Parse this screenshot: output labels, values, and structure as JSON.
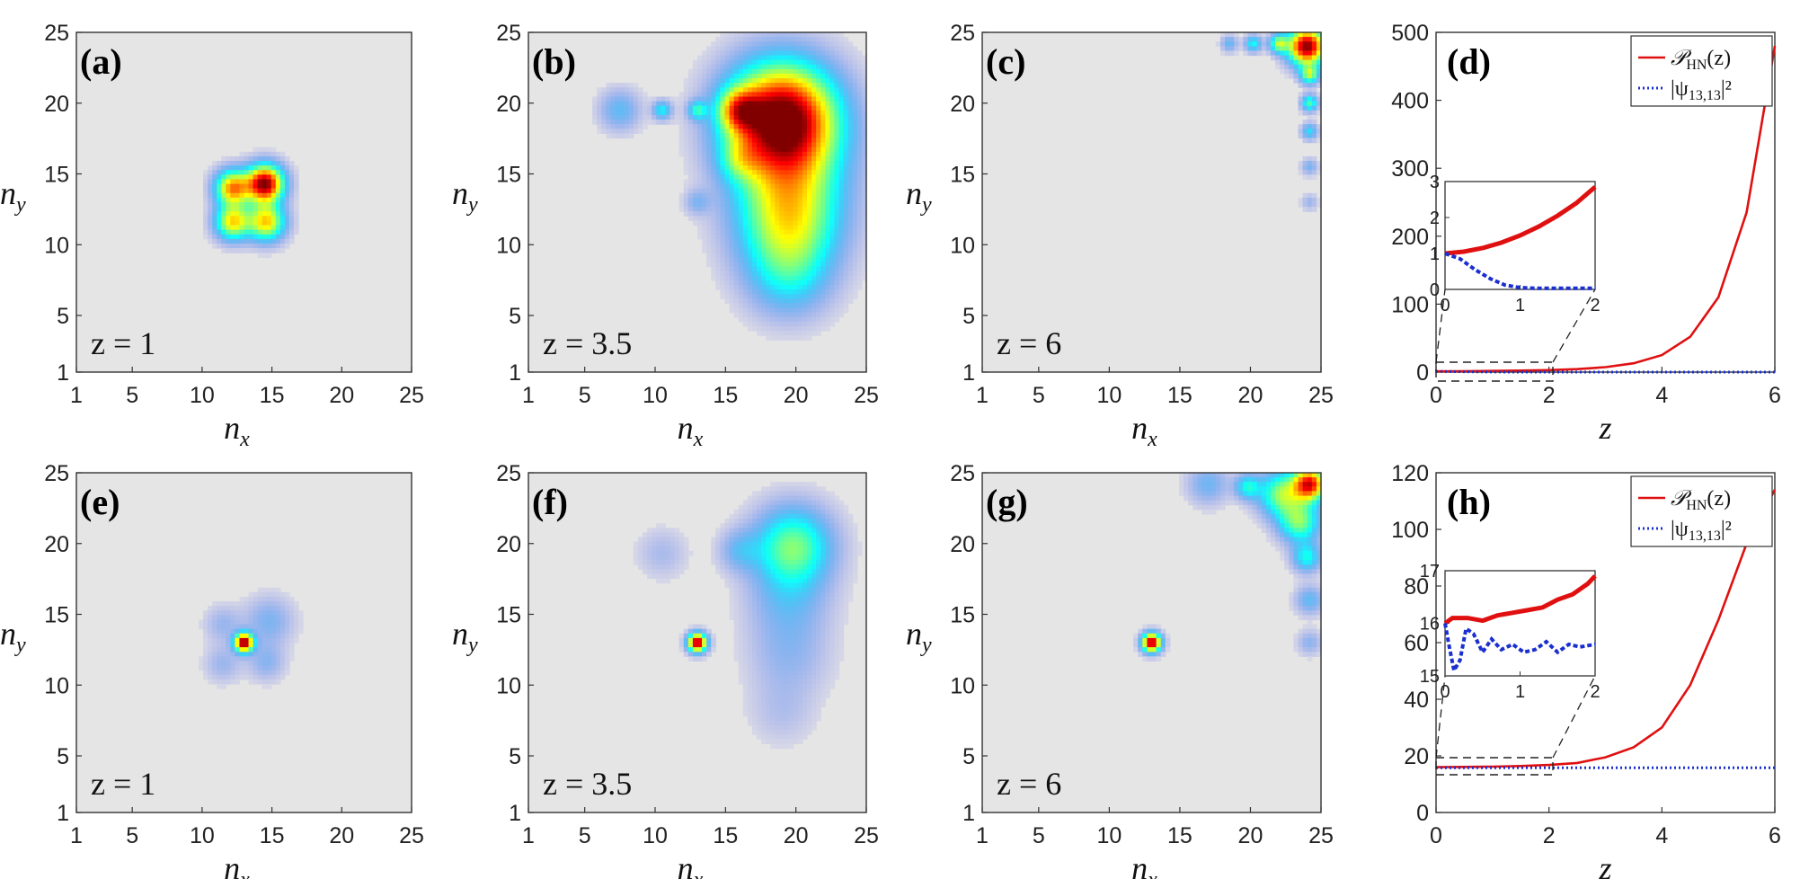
{
  "chart_data": [
    {
      "id": "a",
      "type": "heatmap",
      "panel_label": "(a)",
      "annotation": "z = 1",
      "xlabel": "n",
      "xlabel_sub": "x",
      "ylabel": "n",
      "ylabel_sub": "y",
      "xticks": [
        "1",
        "5",
        "10",
        "15",
        "20",
        "25"
      ],
      "yticks": [
        "1",
        "5",
        "10",
        "15",
        "20",
        "25"
      ],
      "xlim": [
        1,
        25
      ],
      "ylim": [
        1,
        25
      ],
      "blobs": [
        [
          14.5,
          14.3,
          0.9,
          1.0
        ],
        [
          12.2,
          14.0,
          0.85,
          0.7
        ],
        [
          12.2,
          11.6,
          0.85,
          0.6
        ],
        [
          14.6,
          11.6,
          0.9,
          0.62
        ]
      ]
    },
    {
      "id": "b",
      "type": "heatmap",
      "panel_label": "(b)",
      "annotation": "z = 3.5",
      "xlabel": "n",
      "xlabel_sub": "x",
      "ylabel": "n",
      "ylabel_sub": "y",
      "xticks": [
        "1",
        "5",
        "10",
        "15",
        "20",
        "25"
      ],
      "yticks": [
        "1",
        "5",
        "10",
        "15",
        "20",
        "25"
      ],
      "xlim": [
        1,
        25
      ],
      "ylim": [
        1,
        25
      ],
      "blobs": [
        [
          19.0,
          19.0,
          2.6,
          1.0
        ],
        [
          16.0,
          19.5,
          1.0,
          0.45
        ],
        [
          13.0,
          19.5,
          0.45,
          0.3
        ],
        [
          10.5,
          19.5,
          0.45,
          0.28
        ],
        [
          7.5,
          19.5,
          1.0,
          0.18
        ],
        [
          19.5,
          16.0,
          2.8,
          0.22
        ],
        [
          19.5,
          13.0,
          2.5,
          0.3
        ],
        [
          19.5,
          10.5,
          2.4,
          0.3
        ],
        [
          19.5,
          7.5,
          2.0,
          0.18
        ],
        [
          16.0,
          16.0,
          1.0,
          0.18
        ],
        [
          13.0,
          13.0,
          0.6,
          0.12
        ]
      ]
    },
    {
      "id": "c",
      "type": "heatmap",
      "panel_label": "(c)",
      "annotation": "z = 6",
      "xlabel": "n",
      "xlabel_sub": "x",
      "ylabel": "n",
      "ylabel_sub": "y",
      "xticks": [
        "1",
        "5",
        "10",
        "15",
        "20",
        "25"
      ],
      "yticks": [
        "1",
        "5",
        "10",
        "15",
        "20",
        "25"
      ],
      "xlim": [
        1,
        25
      ],
      "ylim": [
        1,
        25
      ],
      "blobs": [
        [
          24.0,
          24.0,
          0.9,
          1.0
        ],
        [
          22.0,
          24.2,
          0.45,
          0.45
        ],
        [
          20.2,
          24.2,
          0.4,
          0.3
        ],
        [
          18.5,
          24.2,
          0.4,
          0.18
        ],
        [
          24.2,
          22.0,
          0.45,
          0.45
        ],
        [
          24.2,
          20.0,
          0.4,
          0.38
        ],
        [
          24.2,
          18.0,
          0.4,
          0.25
        ],
        [
          24.2,
          15.5,
          0.4,
          0.15
        ],
        [
          24.2,
          13.0,
          0.4,
          0.1
        ]
      ]
    },
    {
      "id": "d",
      "type": "line",
      "panel_label": "(d)",
      "xlabel": "z",
      "xticks": [
        "0",
        "2",
        "4",
        "6"
      ],
      "yticks": [
        "0",
        "100",
        "200",
        "300",
        "400",
        "500"
      ],
      "xlim": [
        0,
        6
      ],
      "ylim": [
        0,
        500
      ],
      "series": [
        {
          "name": "𝒫_HN(z)",
          "color": "#e01010",
          "style": "solid",
          "x": [
            0,
            0.5,
            1,
            1.5,
            2,
            2.5,
            3,
            3.5,
            4,
            4.5,
            5,
            5.5,
            6
          ],
          "y": [
            1,
            1.3,
            1.7,
            2.2,
            2.9,
            4.3,
            7.3,
            13,
            25,
            52,
            110,
            235,
            480
          ]
        },
        {
          "name": "|ψ_13,13|²",
          "color": "#1a2fd0",
          "style": "dotted",
          "x": [
            0,
            0.5,
            1,
            1.5,
            2,
            3,
            4,
            5,
            6
          ],
          "y": [
            1,
            0.5,
            0.15,
            0.05,
            0.05,
            0.05,
            0.05,
            0.05,
            0.05
          ]
        }
      ],
      "legend": [
        "𝒫",
        "HN",
        "(z)",
        "|ψ",
        "13,13",
        "|²"
      ],
      "inset": {
        "xlim": [
          0,
          2
        ],
        "ylim": [
          0,
          3
        ],
        "xticks": [
          "0",
          "1",
          "2"
        ],
        "yticks": [
          "0",
          "1",
          "2",
          "3"
        ],
        "series": [
          {
            "color": "#e01010",
            "style": "solid",
            "x": [
              0,
              0.25,
              0.5,
              0.75,
              1,
              1.25,
              1.5,
              1.75,
              2
            ],
            "y": [
              1,
              1.05,
              1.15,
              1.3,
              1.5,
              1.75,
              2.05,
              2.4,
              2.85
            ]
          },
          {
            "color": "#1a2fd0",
            "style": "dotted",
            "x": [
              0,
              0.2,
              0.4,
              0.6,
              0.8,
              1,
              1.2,
              1.5,
              2
            ],
            "y": [
              1,
              0.85,
              0.55,
              0.3,
              0.12,
              0.05,
              0.03,
              0.03,
              0.03
            ]
          }
        ]
      }
    },
    {
      "id": "e",
      "type": "heatmap",
      "panel_label": "(e)",
      "annotation": "z = 1",
      "xlabel": "n",
      "xlabel_sub": "x",
      "ylabel": "n",
      "ylabel_sub": "y",
      "xticks": [
        "1",
        "5",
        "10",
        "15",
        "20",
        "25"
      ],
      "yticks": [
        "1",
        "5",
        "10",
        "15",
        "20",
        "25"
      ],
      "xlim": [
        1,
        25
      ],
      "ylim": [
        1,
        25
      ],
      "blobs": [
        [
          13.0,
          13.0,
          0.45,
          1.0
        ],
        [
          14.8,
          14.5,
          1.2,
          0.14
        ],
        [
          11.5,
          14.3,
          0.9,
          0.1
        ],
        [
          11.5,
          11.5,
          0.9,
          0.1
        ],
        [
          14.6,
          11.6,
          0.9,
          0.12
        ]
      ]
    },
    {
      "id": "f",
      "type": "heatmap",
      "panel_label": "(f)",
      "annotation": "z = 3.5",
      "xlabel": "n",
      "xlabel_sub": "x",
      "ylabel": "n",
      "ylabel_sub": "y",
      "xticks": [
        "1",
        "5",
        "10",
        "15",
        "20",
        "25"
      ],
      "yticks": [
        "1",
        "5",
        "10",
        "15",
        "20",
        "25"
      ],
      "xlim": [
        1,
        25
      ],
      "ylim": [
        1,
        25
      ],
      "blobs": [
        [
          13.0,
          13.0,
          0.45,
          1.0
        ],
        [
          19.8,
          19.8,
          1.9,
          0.42
        ],
        [
          16.0,
          19.5,
          1.0,
          0.14
        ],
        [
          10.5,
          19.3,
          1.2,
          0.08
        ],
        [
          19.5,
          16.0,
          2.0,
          0.14
        ],
        [
          19.5,
          12.0,
          2.0,
          0.1
        ],
        [
          19.0,
          8.0,
          1.6,
          0.06
        ]
      ]
    },
    {
      "id": "g",
      "type": "heatmap",
      "panel_label": "(g)",
      "annotation": "z = 6",
      "xlabel": "n",
      "xlabel_sub": "x",
      "ylabel": "n",
      "ylabel_sub": "y",
      "xticks": [
        "1",
        "5",
        "10",
        "15",
        "20",
        "25"
      ],
      "yticks": [
        "1",
        "5",
        "10",
        "15",
        "20",
        "25"
      ],
      "xlim": [
        1,
        25
      ],
      "ylim": [
        1,
        25
      ],
      "blobs": [
        [
          13.0,
          13.0,
          0.45,
          1.0
        ],
        [
          24.2,
          24.2,
          0.8,
          0.85
        ],
        [
          22.2,
          23.5,
          1.1,
          0.45
        ],
        [
          19.8,
          24.0,
          0.6,
          0.3
        ],
        [
          17.0,
          24.2,
          1.0,
          0.16
        ],
        [
          23.5,
          21.5,
          1.0,
          0.42
        ],
        [
          24.0,
          19.0,
          0.7,
          0.3
        ],
        [
          24.2,
          16.0,
          0.7,
          0.18
        ],
        [
          24.2,
          13.0,
          0.6,
          0.12
        ]
      ]
    },
    {
      "id": "h",
      "type": "line",
      "panel_label": "(h)",
      "xlabel": "z",
      "xticks": [
        "0",
        "2",
        "4",
        "6"
      ],
      "yticks": [
        "0",
        "20",
        "40",
        "60",
        "80",
        "100",
        "120"
      ],
      "xlim": [
        0,
        6
      ],
      "ylim": [
        0,
        120
      ],
      "series": [
        {
          "name": "𝒫_HN(z)",
          "color": "#e01010",
          "style": "solid",
          "x": [
            0,
            0.5,
            1,
            1.5,
            2,
            2.5,
            3,
            3.5,
            4,
            4.5,
            5,
            5.5,
            6
          ],
          "y": [
            16,
            16.1,
            16.2,
            16.4,
            16.8,
            17.5,
            19.5,
            23,
            30,
            45,
            68,
            95,
            114
          ]
        },
        {
          "name": "|ψ_13,13|²",
          "color": "#1a2fd0",
          "style": "dotted",
          "x": [
            0,
            1,
            2,
            3,
            4,
            5,
            6
          ],
          "y": [
            15.8,
            15.8,
            15.8,
            15.8,
            15.8,
            15.8,
            15.8
          ]
        }
      ],
      "legend": [
        "𝒫",
        "HN",
        "(z)",
        "|ψ",
        "13,13",
        "|²"
      ],
      "inset": {
        "xlim": [
          0,
          2
        ],
        "ylim": [
          15,
          17
        ],
        "xticks": [
          "0",
          "1",
          "2"
        ],
        "yticks": [
          "15",
          "16",
          "17"
        ],
        "series": [
          {
            "color": "#e01010",
            "style": "solid",
            "x": [
              0,
              0.1,
              0.3,
              0.5,
              0.7,
              0.9,
              1.1,
              1.3,
              1.5,
              1.7,
              1.9,
              2
            ],
            "y": [
              16.0,
              16.1,
              16.1,
              16.05,
              16.15,
              16.2,
              16.25,
              16.3,
              16.45,
              16.55,
              16.75,
              16.9
            ]
          },
          {
            "color": "#1a2fd0",
            "style": "dotted",
            "x": [
              0,
              0.05,
              0.12,
              0.2,
              0.28,
              0.38,
              0.5,
              0.62,
              0.75,
              0.9,
              1.05,
              1.2,
              1.35,
              1.5,
              1.65,
              1.8,
              2
            ],
            "y": [
              16.0,
              15.6,
              15.1,
              15.3,
              15.9,
              15.8,
              15.45,
              15.7,
              15.5,
              15.6,
              15.45,
              15.5,
              15.65,
              15.45,
              15.6,
              15.55,
              15.6
            ]
          }
        ]
      }
    }
  ]
}
